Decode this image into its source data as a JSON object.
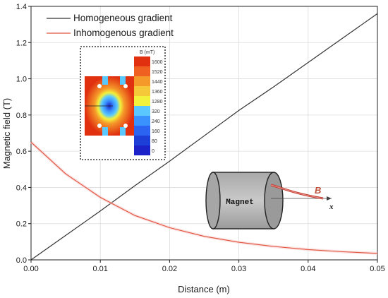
{
  "chart_data": {
    "type": "line",
    "xlabel": "Distance (m)",
    "ylabel": "Magnetic field (T)",
    "xlim": [
      0,
      0.05
    ],
    "ylim": [
      0,
      1.4
    ],
    "xticks": [
      "0.00",
      "0.01",
      "0.02",
      "0.03",
      "0.04",
      "0.05"
    ],
    "yticks": [
      "0.0",
      "0.2",
      "0.4",
      "0.6",
      "0.8",
      "1.0",
      "1.2",
      "1.4"
    ],
    "grid": true,
    "legend_position": "top-left",
    "series": [
      {
        "name": "Homogeneous gradient",
        "color": "#333333",
        "x": [
          0.0,
          0.005,
          0.01,
          0.015,
          0.02,
          0.025,
          0.03,
          0.035,
          0.04,
          0.045,
          0.05
        ],
        "y": [
          0.0,
          0.135,
          0.27,
          0.41,
          0.545,
          0.685,
          0.825,
          0.955,
          1.09,
          1.225,
          1.36
        ]
      },
      {
        "name": "Inhomogenous gradient",
        "color": "#e0533d",
        "x": [
          0.0,
          0.005,
          0.01,
          0.015,
          0.02,
          0.025,
          0.03,
          0.035,
          0.04,
          0.045,
          0.05
        ],
        "y": [
          0.65,
          0.475,
          0.345,
          0.245,
          0.178,
          0.13,
          0.097,
          0.074,
          0.057,
          0.045,
          0.036
        ]
      }
    ]
  },
  "inset": {
    "colorbar_title": "B (mT)",
    "colorbar_labels": [
      "1600",
      "1520",
      "1440",
      "1360",
      "1280",
      "320",
      "240",
      "160",
      "80",
      "0"
    ],
    "colorbar_colors": [
      "#e03010",
      "#f06020",
      "#f59a2a",
      "#f5c83a",
      "#f2f23c",
      "#5ac8ff",
      "#3a92ff",
      "#2a64f0",
      "#1e3ed8",
      "#1a22c8"
    ]
  },
  "diagram": {
    "magnet_label": "Magnet",
    "field_label": "B",
    "axis_label": "x"
  }
}
